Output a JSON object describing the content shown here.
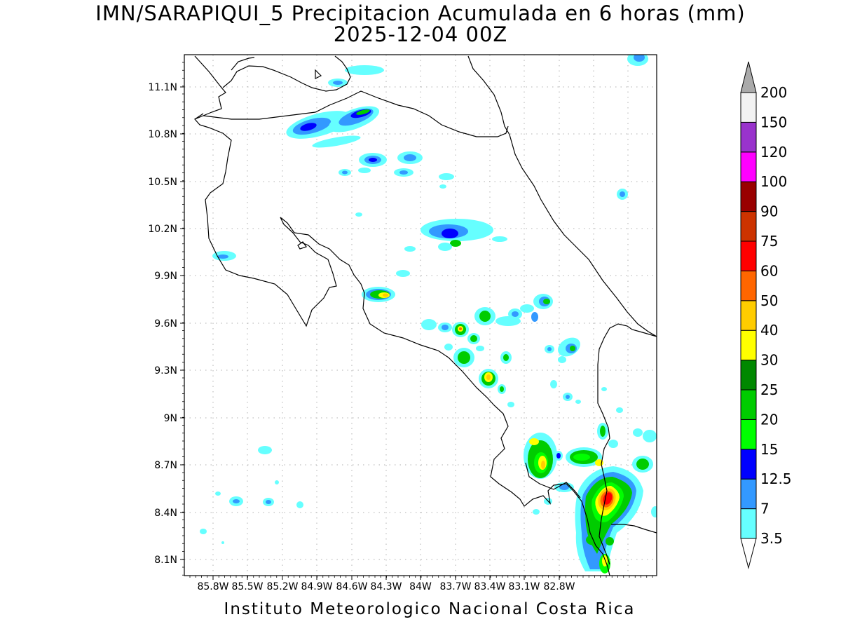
{
  "title": {
    "line1": "IMN/SARAPIQUI_5 Precipitacion Acumulada en 6 horas (mm)",
    "line2": "2025-12-04 00Z"
  },
  "footer": "Instituto Meteorologico Nacional Costa Rica",
  "map": {
    "lon_range": [
      -86.02,
      -82.55
    ],
    "lat_range": [
      8.0,
      11.3
    ],
    "y_ticks": [
      "11.1N",
      "10.8N",
      "10.5N",
      "10.2N",
      "9.9N",
      "9.6N",
      "9.3N",
      "9N",
      "8.7N",
      "8.4N",
      "8.1N"
    ],
    "x_ticks": [
      "85.8W",
      "85.5W",
      "85.2W",
      "84.9W",
      "84.6W",
      "84.3W",
      "84W",
      "83.7W",
      "83.4W",
      "83.1W",
      "82.8W"
    ],
    "grid": true
  },
  "colorbar": {
    "levels": [
      "3.5",
      "7",
      "12.5",
      "15",
      "20",
      "25",
      "30",
      "40",
      "50",
      "60",
      "75",
      "90",
      "100",
      "120",
      "150",
      "200"
    ],
    "colors": [
      "#66ffff",
      "#3399ff",
      "#0000ff",
      "#00ff00",
      "#00cc00",
      "#008800",
      "#ffff00",
      "#ffcc00",
      "#ff6600",
      "#ff0000",
      "#cc3300",
      "#990000",
      "#ff00ff",
      "#9933cc",
      "#f2f2f2",
      "#aaaaaa"
    ],
    "over_color": "#aaaaaa",
    "under_color": "#ffffff"
  }
}
